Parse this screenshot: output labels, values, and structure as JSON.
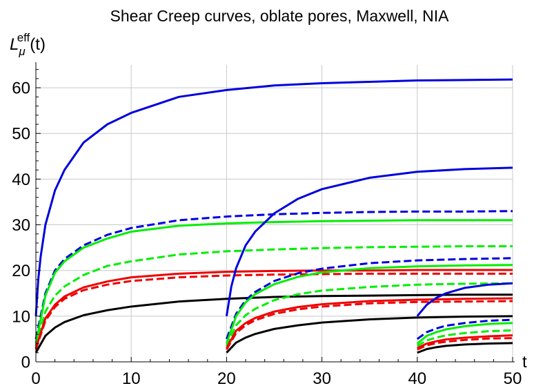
{
  "chart_data": {
    "type": "line",
    "title": "Shear Creep curves, oblate pores, Maxwell, NIA",
    "xlabel": "t",
    "ylabel": {
      "base": "L",
      "sub": "μ",
      "sup": "eff",
      "suffix": "(t)"
    },
    "xlim": [
      0,
      50
    ],
    "ylim": [
      0,
      65
    ],
    "xticks": [
      0,
      10,
      20,
      30,
      40,
      50
    ],
    "yticks": [
      0,
      10,
      20,
      30,
      40,
      50,
      60
    ],
    "grid": true,
    "legend": "none",
    "colors": {
      "blue": "#0000dd",
      "green": "#00ee00",
      "red": "#ee0000",
      "black": "#000000",
      "grid": "#c8c8c8"
    },
    "series": [
      {
        "color": "blue",
        "style": "solid",
        "x": [
          0,
          0.25,
          0.5,
          1,
          2,
          3,
          5,
          7.5,
          10,
          15,
          20,
          25,
          30,
          35,
          40,
          45,
          50
        ],
        "y": [
          10,
          18,
          23,
          30,
          37.5,
          42,
          48,
          52,
          54.5,
          58,
          59.5,
          60.5,
          61,
          61.3,
          61.6,
          61.7,
          61.8
        ]
      },
      {
        "color": "blue",
        "style": "dashed",
        "x": [
          0,
          1,
          2,
          3,
          5,
          7.5,
          10,
          15,
          20,
          25,
          30,
          35,
          40,
          45,
          50
        ],
        "y": [
          5,
          15,
          20,
          22.5,
          25.5,
          27.8,
          29.3,
          31,
          31.8,
          32.3,
          32.6,
          32.8,
          32.9,
          32.9,
          33
        ]
      },
      {
        "color": "green",
        "style": "solid",
        "x": [
          0,
          1,
          2,
          3,
          5,
          7.5,
          10,
          15,
          20,
          25,
          30,
          35,
          40,
          45,
          50
        ],
        "y": [
          4,
          14.5,
          19.5,
          22,
          25,
          27,
          28.5,
          29.8,
          30.3,
          30.6,
          30.8,
          30.9,
          31,
          31,
          31
        ]
      },
      {
        "color": "green",
        "style": "dashed",
        "x": [
          0,
          1,
          2,
          3,
          5,
          7.5,
          10,
          15,
          20,
          25,
          30,
          35,
          40,
          45,
          50
        ],
        "y": [
          3.5,
          11,
          14.5,
          16.5,
          19,
          21,
          22,
          23.5,
          24.2,
          24.6,
          24.9,
          25.1,
          25.2,
          25.3,
          25.3
        ]
      },
      {
        "color": "red",
        "style": "solid",
        "x": [
          0,
          1,
          2,
          3,
          5,
          7.5,
          10,
          15,
          20,
          25,
          30,
          35,
          40,
          45,
          50
        ],
        "y": [
          3,
          9.5,
          12.5,
          14.3,
          16.3,
          17.6,
          18.5,
          19.3,
          19.7,
          19.9,
          20,
          20,
          20.1,
          20.1,
          20.1
        ]
      },
      {
        "color": "red",
        "style": "dashed",
        "x": [
          0,
          1,
          2,
          3,
          5,
          7.5,
          10,
          15,
          20,
          25,
          30,
          35,
          40,
          45,
          50
        ],
        "y": [
          2.7,
          9,
          12,
          13.8,
          15.7,
          16.9,
          17.7,
          18.5,
          18.9,
          19.1,
          19.2,
          19.3,
          19.3,
          19.3,
          19.3
        ]
      },
      {
        "color": "black",
        "style": "solid",
        "x": [
          0,
          1,
          2,
          3,
          5,
          7.5,
          10,
          15,
          20,
          25,
          30,
          35,
          40,
          45,
          50
        ],
        "y": [
          2,
          5.7,
          7.5,
          8.7,
          10.2,
          11.3,
          12.1,
          13.2,
          13.8,
          14.2,
          14.4,
          14.5,
          14.6,
          14.7,
          14.7
        ]
      },
      {
        "color": "blue",
        "style": "solid",
        "x": [
          20,
          20.5,
          21,
          22,
          23,
          25,
          27.5,
          30,
          35,
          40,
          45,
          50
        ],
        "y": [
          10,
          16.5,
          20.5,
          25.5,
          28.5,
          32.5,
          35.7,
          37.8,
          40.3,
          41.6,
          42.2,
          42.5
        ]
      },
      {
        "color": "blue",
        "style": "dashed",
        "x": [
          20,
          21,
          22,
          23,
          25,
          27.5,
          30,
          35,
          40,
          45,
          50
        ],
        "y": [
          5,
          10.5,
          13.5,
          15.3,
          17.7,
          19.4,
          20.4,
          21.6,
          22.2,
          22.5,
          22.7
        ]
      },
      {
        "color": "green",
        "style": "solid",
        "x": [
          20,
          21,
          22,
          23,
          25,
          27.5,
          30,
          35,
          40,
          45,
          50
        ],
        "y": [
          4,
          10,
          13,
          14.8,
          17,
          18.6,
          19.6,
          20.5,
          20.9,
          21.1,
          21.2
        ]
      },
      {
        "color": "green",
        "style": "dashed",
        "x": [
          20,
          21,
          22,
          23,
          25,
          27.5,
          30,
          35,
          40,
          45,
          50
        ],
        "y": [
          3.5,
          8,
          10.2,
          11.6,
          13.5,
          14.8,
          15.6,
          16.4,
          16.9,
          17.1,
          17.2
        ]
      },
      {
        "color": "red",
        "style": "solid",
        "x": [
          20,
          21,
          22,
          23,
          25,
          27.5,
          30,
          35,
          40,
          45,
          50
        ],
        "y": [
          3,
          6.8,
          8.5,
          9.6,
          11,
          12,
          12.6,
          13.3,
          13.6,
          13.8,
          13.9
        ]
      },
      {
        "color": "red",
        "style": "dashed",
        "x": [
          20,
          21,
          22,
          23,
          25,
          27.5,
          30,
          35,
          40,
          45,
          50
        ],
        "y": [
          2.7,
          6.3,
          8,
          9.1,
          10.5,
          11.5,
          12.1,
          12.8,
          13.1,
          13.2,
          13.3
        ]
      },
      {
        "color": "black",
        "style": "solid",
        "x": [
          20,
          21,
          22,
          23,
          25,
          27.5,
          30,
          35,
          40,
          45,
          50
        ],
        "y": [
          2,
          4.2,
          5.3,
          6.1,
          7.2,
          8,
          8.6,
          9.3,
          9.7,
          9.9,
          10
        ]
      },
      {
        "color": "blue",
        "style": "solid",
        "x": [
          40,
          41,
          42,
          43,
          45,
          47.5,
          50
        ],
        "y": [
          10,
          12.5,
          14,
          15,
          16.2,
          16.9,
          17.2
        ]
      },
      {
        "color": "blue",
        "style": "dashed",
        "x": [
          40,
          41,
          42,
          43,
          45,
          47.5,
          50
        ],
        "y": [
          5,
          6.5,
          7.3,
          7.9,
          8.5,
          9,
          9.2
        ]
      },
      {
        "color": "green",
        "style": "solid",
        "x": [
          40,
          41,
          42,
          43,
          45,
          47.5,
          50
        ],
        "y": [
          4,
          5.7,
          6.5,
          7.1,
          7.8,
          8.3,
          8.5
        ]
      },
      {
        "color": "green",
        "style": "dashed",
        "x": [
          40,
          41,
          42,
          43,
          45,
          47.5,
          50
        ],
        "y": [
          3.5,
          4.7,
          5.3,
          5.8,
          6.3,
          6.7,
          6.9
        ]
      },
      {
        "color": "red",
        "style": "solid",
        "x": [
          40,
          41,
          42,
          43,
          45,
          47.5,
          50
        ],
        "y": [
          3,
          4,
          4.5,
          4.9,
          5.3,
          5.6,
          5.8
        ]
      },
      {
        "color": "red",
        "style": "dashed",
        "x": [
          40,
          41,
          42,
          43,
          45,
          47.5,
          50
        ],
        "y": [
          2.7,
          3.6,
          4.1,
          4.4,
          4.8,
          5.1,
          5.2
        ]
      },
      {
        "color": "black",
        "style": "solid",
        "x": [
          40,
          41,
          42,
          43,
          45,
          47.5,
          50
        ],
        "y": [
          2,
          2.8,
          3.2,
          3.5,
          3.8,
          4,
          4.1
        ]
      }
    ]
  }
}
